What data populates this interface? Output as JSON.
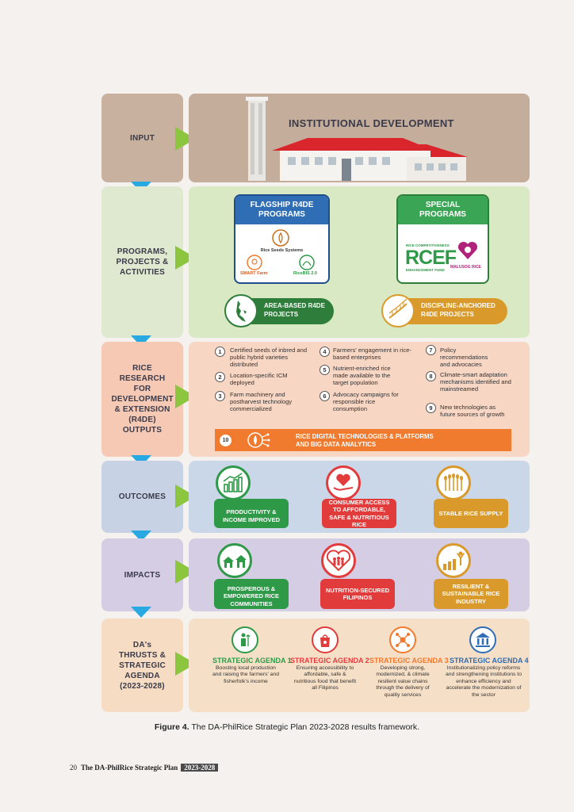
{
  "rows": {
    "input": "INPUT",
    "ppa": "PROGRAMS, PROJECTS & ACTIVITIES",
    "r4de": "RICE RESEARCH FOR DEVELOPMENT & EXTENSION (R4DE) OUTPUTS",
    "outcomes": "OUTCOMES",
    "impacts": "IMPACTS",
    "thrusts": "DA's THRUSTS & STRATEGIC AGENDA (2023-2028)"
  },
  "input": {
    "title": "INSTITUTIONAL DEVELOPMENT"
  },
  "ppa": {
    "flagship_title": "FLAGSHIP R4DE PROGRAMS",
    "rice_seeds": "Rice Seeds Systems",
    "smart_farm": "SMART Farm",
    "ricebis": "RiceBIS 2.0",
    "special_title": "SPECIAL PROGRAMS",
    "rcef_top": "RICE COMPETITIVENESS",
    "rcef_big": "RCEF",
    "rcef_bottom": "ENHANCEMENT FUND",
    "malusog": "MALUSOG RICE",
    "area_based": "AREA-BASED R4DE PROJECTS",
    "discipline": "DISCIPLINE-ANCHORED R4DE PROJECTS"
  },
  "outputs": [
    {
      "n": "1",
      "text": "Certified seeds of inbred and public hybrid varieties distributed"
    },
    {
      "n": "2",
      "text": "Location-specific ICM deployed"
    },
    {
      "n": "3",
      "text": "Farm machinery and postharvest technology commercialized"
    },
    {
      "n": "4",
      "text": "Farmers' engagement in rice-based enterprises"
    },
    {
      "n": "5",
      "text": "Nutrient-enriched rice made available to the target population"
    },
    {
      "n": "6",
      "text": "Advocacy campaigns for responsible rice consumption"
    },
    {
      "n": "7",
      "text": "Policy recommendations and advocacies"
    },
    {
      "n": "8",
      "text": "Climate-smart adaptation mechanisms identified and mainstreamed"
    },
    {
      "n": "9",
      "text": "New technologies as future sources of growth"
    }
  ],
  "output10": {
    "n": "10",
    "text": "RICE DIGITAL TECHNOLOGIES & PLATFORMS AND BIG DATA ANALYTICS"
  },
  "outcomes": [
    {
      "text": "PRODUCTIVITY & INCOME IMPROVED",
      "color": "#2e9a48",
      "icon": "bar-chart-icon"
    },
    {
      "text": "CONSUMER ACCESS TO AFFORDABLE, SAFE & NUTRITIOUS RICE",
      "color": "#e23b3b",
      "icon": "heart-hand-icon"
    },
    {
      "text": "STABLE RICE SUPPLY",
      "color": "#d99a2b",
      "icon": "rice-field-icon"
    }
  ],
  "impacts": [
    {
      "text": "PROSPEROUS & EMPOWERED RICE COMMUNITIES",
      "color": "#2e9a48",
      "icon": "houses-icon"
    },
    {
      "text": "NUTRITION-SECURED FILIPINOS",
      "color": "#e23b3b",
      "icon": "family-heart-icon"
    },
    {
      "text": "RESILIENT & SUSTAINABLE RICE INDUSTRY",
      "color": "#d99a2b",
      "icon": "growth-person-icon"
    }
  ],
  "agenda": [
    {
      "title": "STRATEGIC AGENDA 1",
      "text": "Boosting local production and raising the farmers' and fisherfolk's income",
      "color": "#2e9a48",
      "icon": "farmer-icon"
    },
    {
      "title": "STRATEGIC AGENDA 2",
      "text": "Ensuring accessibility to affordable, safe & nutritious food that benefit all Filipinos",
      "color": "#e23b3b",
      "icon": "food-bag-icon"
    },
    {
      "title": "STRATEGIC AGENDA 3",
      "text": "Developing strong, modernized, & climate resilient value chains through the delivery of quality services",
      "color": "#f07a2e",
      "icon": "network-icon"
    },
    {
      "title": "STRATEGIC AGENDA 4",
      "text": "Institutionalizing policy reforms and strengthening institutions to enhance efficiency and accelerate the modernization of the sector",
      "color": "#2f6db5",
      "icon": "institution-icon"
    }
  ],
  "caption": {
    "bold": "Figure 4.",
    "text": " The DA-PhilRice Strategic Plan 2023-2028 results framework."
  },
  "footer": {
    "page": "20",
    "title": "The DA-PhilRice Strategic Plan",
    "years": "2023-2028"
  },
  "colors": {
    "green": "#8cc63f",
    "blue": "#29a9e1",
    "orange": "#f07a2e"
  }
}
